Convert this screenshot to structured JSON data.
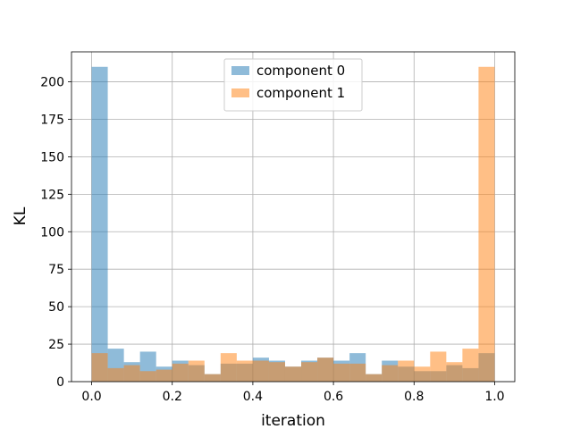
{
  "chart_data": {
    "type": "bar",
    "subtype": "overlaid-histogram",
    "title": "",
    "xlabel": "iteration",
    "ylabel": "KL",
    "xlim": [
      -0.05,
      1.05
    ],
    "ylim": [
      0,
      220
    ],
    "grid": true,
    "legend": "top-center",
    "bin_edges": [
      0.0,
      0.04,
      0.08,
      0.12,
      0.16,
      0.2,
      0.24,
      0.28,
      0.32,
      0.36,
      0.4,
      0.44,
      0.48,
      0.52,
      0.56,
      0.6,
      0.64,
      0.68,
      0.72,
      0.76,
      0.8,
      0.84,
      0.88,
      0.92,
      0.96,
      1.0
    ],
    "x_ticks": [
      {
        "value": 0.0,
        "label": "0.0"
      },
      {
        "value": 0.2,
        "label": "0.2"
      },
      {
        "value": 0.4,
        "label": "0.4"
      },
      {
        "value": 0.6,
        "label": "0.6"
      },
      {
        "value": 0.8,
        "label": "0.8"
      },
      {
        "value": 1.0,
        "label": "1.0"
      }
    ],
    "y_ticks": [
      {
        "value": 0,
        "label": "0"
      },
      {
        "value": 25,
        "label": "25"
      },
      {
        "value": 50,
        "label": "50"
      },
      {
        "value": 75,
        "label": "75"
      },
      {
        "value": 100,
        "label": "100"
      },
      {
        "value": 125,
        "label": "125"
      },
      {
        "value": 150,
        "label": "150"
      },
      {
        "value": 175,
        "label": "175"
      },
      {
        "value": 200,
        "label": "200"
      }
    ],
    "series": [
      {
        "name": "component 0",
        "color": "#1f77b4",
        "values": [
          210,
          22,
          13,
          20,
          10,
          14,
          11,
          5,
          12,
          12,
          16,
          14,
          10,
          14,
          16,
          14,
          19,
          5,
          14,
          10,
          7,
          7,
          11,
          9,
          19
        ]
      },
      {
        "name": "component 1",
        "color": "#ff7f0e",
        "values": [
          19,
          9,
          11,
          7,
          8,
          12,
          14,
          5,
          19,
          14,
          14,
          13,
          10,
          13,
          16,
          12,
          12,
          5,
          11,
          14,
          10,
          20,
          13,
          22,
          210
        ]
      }
    ]
  }
}
